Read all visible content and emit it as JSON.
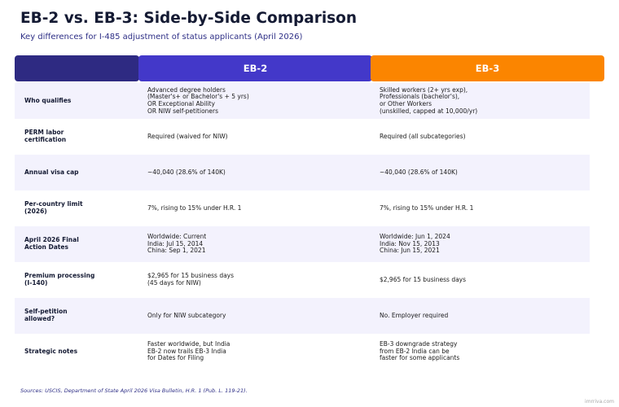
{
  "title": "EB-2 vs. EB-3: Side-by-Side Comparison",
  "subtitle": "Key differences for I-485 adjustment of status applicants (April 2026)",
  "colors": {
    "label_header": "#2e2a82",
    "eb2_header": "#4338c9",
    "eb3_header": "#fb8500",
    "row_shade": "#f3f2fd"
  },
  "table": {
    "header": {
      "label": "",
      "eb2": "EB-2",
      "eb3": "EB-3"
    },
    "rows": [
      {
        "label": [
          "Who qualifies"
        ],
        "eb2": [
          "Advanced degree holders",
          "(Master's+ or Bachelor's + 5 yrs)",
          "OR Exceptional Ability",
          "OR NIW self-petitioners"
        ],
        "eb3": [
          "Skilled workers (2+ yrs exp),",
          "Professionals (bachelor's),",
          "or Other Workers",
          "(unskilled, capped at 10,000/yr)"
        ]
      },
      {
        "label": [
          "PERM labor",
          "certification"
        ],
        "eb2": [
          "Required (waived for NIW)"
        ],
        "eb3": [
          "Required (all subcategories)"
        ]
      },
      {
        "label": [
          "Annual visa cap"
        ],
        "eb2": [
          "~40,040 (28.6% of 140K)"
        ],
        "eb3": [
          "~40,040 (28.6% of 140K)"
        ]
      },
      {
        "label": [
          "Per-country limit",
          "(2026)"
        ],
        "eb2": [
          "7%, rising to 15% under H.R. 1"
        ],
        "eb3": [
          "7%, rising to 15% under H.R. 1"
        ]
      },
      {
        "label": [
          "April 2026 Final",
          "Action Dates"
        ],
        "eb2": [
          "Worldwide: Current",
          "India: Jul 15, 2014",
          "China: Sep 1, 2021"
        ],
        "eb3": [
          "Worldwide: Jun 1, 2024",
          "India: Nov 15, 2013",
          "China: Jun 15, 2021"
        ]
      },
      {
        "label": [
          "Premium processing",
          "(I-140)"
        ],
        "eb2": [
          "$2,965 for 15 business days",
          "(45 days for NIW)"
        ],
        "eb3": [
          "$2,965 for 15 business days"
        ]
      },
      {
        "label": [
          "Self-petition",
          "allowed?"
        ],
        "eb2": [
          "Only for NIW subcategory"
        ],
        "eb3": [
          "No. Employer required"
        ]
      },
      {
        "label": [
          "Strategic notes"
        ],
        "eb2": [
          "Faster worldwide, but India",
          "EB-2 now trails EB-3 India",
          "for Dates for Filing"
        ],
        "eb3": [
          "EB-3 downgrade strategy",
          "from EB-2 India can be",
          "faster for some applicants"
        ]
      }
    ]
  },
  "sources": "Sources: USCIS, Department of State April 2026 Visa Bulletin, H.R. 1 (Pub. L. 119-21).",
  "watermark": "imrriva.com"
}
